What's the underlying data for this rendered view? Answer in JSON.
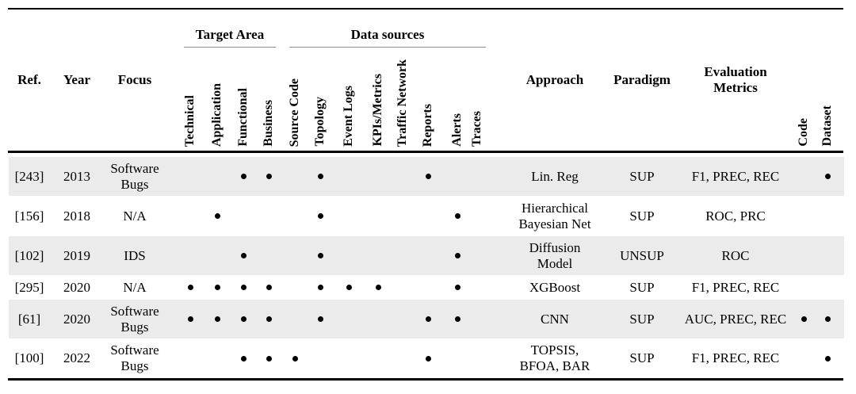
{
  "table": {
    "headers": {
      "ref": "Ref.",
      "year": "Year",
      "focus": "Focus",
      "approach": "Approach",
      "paradigm": "Paradigm",
      "evaluation_metrics": "Evaluation Metrics"
    },
    "groups": [
      {
        "label": "Target Area"
      },
      {
        "label": "Data sources"
      }
    ],
    "target_area_columns": [
      {
        "key": "technical",
        "label": "Technical"
      },
      {
        "key": "application",
        "label": "Application"
      },
      {
        "key": "functional",
        "label": "Functional"
      },
      {
        "key": "business",
        "label": "Business"
      }
    ],
    "data_source_columns": [
      {
        "key": "source_code",
        "label": "Source Code"
      },
      {
        "key": "topology",
        "label": "Topology"
      },
      {
        "key": "event_logs",
        "label": "Event Logs"
      },
      {
        "key": "kpis_metrics",
        "label": "KPIs/Metrics"
      },
      {
        "key": "traffic_network",
        "label": "Traffic Network"
      },
      {
        "key": "reports",
        "label": "Reports"
      },
      {
        "key": "alerts",
        "label": "Alerts"
      },
      {
        "key": "traces",
        "label": "Traces"
      }
    ],
    "right_rotated_columns": [
      {
        "key": "code",
        "label": "Code"
      },
      {
        "key": "dataset",
        "label": "Dataset"
      }
    ],
    "rows": [
      {
        "ref": "[243]",
        "year": "2013",
        "focus": [
          "Software",
          "Bugs"
        ],
        "marks": [
          "functional",
          "business",
          "topology",
          "reports"
        ],
        "approach": [
          "Lin. Reg"
        ],
        "paradigm": "SUP",
        "metrics": "F1, PREC, REC",
        "code": false,
        "dataset": true
      },
      {
        "ref": "[156]",
        "year": "2018",
        "focus": [
          "N/A"
        ],
        "marks": [
          "application",
          "topology",
          "alerts"
        ],
        "approach": [
          "Hierarchical",
          "Bayesian Net"
        ],
        "paradigm": "SUP",
        "metrics": "ROC, PRC",
        "code": false,
        "dataset": false
      },
      {
        "ref": "[102]",
        "year": "2019",
        "focus": [
          "IDS"
        ],
        "marks": [
          "functional",
          "topology",
          "alerts"
        ],
        "approach": [
          "Diffusion",
          "Model"
        ],
        "paradigm": "UNSUP",
        "metrics": "ROC",
        "code": false,
        "dataset": false
      },
      {
        "ref": "[295]",
        "year": "2020",
        "focus": [
          "N/A"
        ],
        "marks": [
          "technical",
          "application",
          "functional",
          "business",
          "topology",
          "event_logs",
          "kpis_metrics",
          "alerts"
        ],
        "approach": [
          "XGBoost"
        ],
        "paradigm": "SUP",
        "metrics": "F1, PREC, REC",
        "code": false,
        "dataset": false
      },
      {
        "ref": "[61]",
        "year": "2020",
        "focus": [
          "Software",
          "Bugs"
        ],
        "marks": [
          "technical",
          "application",
          "functional",
          "business",
          "topology",
          "reports",
          "alerts"
        ],
        "approach": [
          "CNN"
        ],
        "paradigm": "SUP",
        "metrics": "AUC, PREC, REC",
        "code": true,
        "dataset": true
      },
      {
        "ref": "[100]",
        "year": "2022",
        "focus": [
          "Software",
          "Bugs"
        ],
        "marks": [
          "functional",
          "business",
          "source_code",
          "reports"
        ],
        "approach": [
          "TOPSIS,",
          "BFOA, BAR"
        ],
        "paradigm": "SUP",
        "metrics": "F1, PREC, REC",
        "code": false,
        "dataset": true
      }
    ]
  },
  "colors": {
    "row_stripe": "#ebebeb",
    "rule": "#000000",
    "group_underline": "#8c8c8c",
    "text": "#000000"
  }
}
